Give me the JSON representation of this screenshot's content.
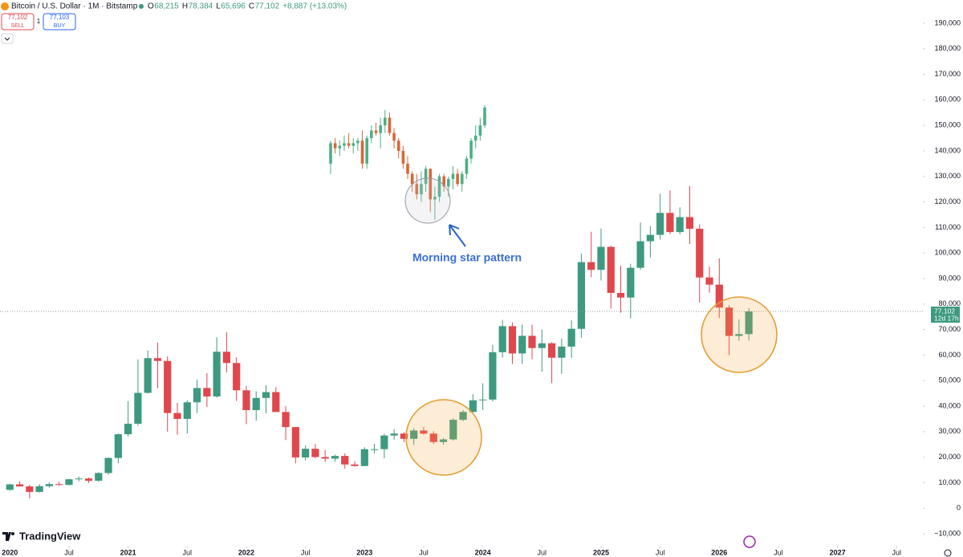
{
  "chart_data": {
    "type": "candlestick",
    "header": {
      "symbol": "Bitcoin / U.S. Dollar · 1M · Bitstamp",
      "ohlc": [
        {
          "label": "O",
          "value": "68,215"
        },
        {
          "label": "H",
          "value": "78,384"
        },
        {
          "label": "L",
          "value": "65,696"
        },
        {
          "label": "C",
          "value": "77,102"
        }
      ],
      "change": "+8,887 (+13.03%)",
      "sell_price": "77,102",
      "sell": "SELL",
      "quantity": "1",
      "buy_price": "77,103",
      "buy": "BUY"
    },
    "logo": "TradingView",
    "up_color": "#3d9a80",
    "down_color": "#e0474c",
    "candles": [
      [
        7200,
        9600,
        6900,
        9350
      ],
      [
        9350,
        10500,
        8450,
        8550
      ],
      [
        8550,
        9200,
        3850,
        6400
      ],
      [
        6400,
        9450,
        6150,
        8650
      ],
      [
        8650,
        10070,
        8100,
        9450
      ],
      [
        9450,
        10400,
        8900,
        9150
      ],
      [
        9150,
        11450,
        8950,
        11350
      ],
      [
        11350,
        12470,
        10500,
        11650
      ],
      [
        11650,
        12050,
        9900,
        10780
      ],
      [
        10780,
        14100,
        10400,
        13800
      ],
      [
        13800,
        19900,
        13200,
        19700
      ],
      [
        19700,
        29300,
        17600,
        28990
      ],
      [
        28990,
        41950,
        28130,
        33110
      ],
      [
        33110,
        58350,
        32300,
        45200
      ],
      [
        45200,
        61800,
        44950,
        58800
      ],
      [
        58800,
        64900,
        47000,
        57700
      ],
      [
        57700,
        59500,
        30000,
        37300
      ],
      [
        37300,
        41300,
        28800,
        35000
      ],
      [
        35000,
        42300,
        29300,
        41500
      ],
      [
        41500,
        50500,
        37300,
        47100
      ],
      [
        47100,
        52900,
        39600,
        43800
      ],
      [
        43800,
        67000,
        43300,
        61300
      ],
      [
        61300,
        69000,
        53250,
        56900
      ],
      [
        56900,
        59100,
        42000,
        46200
      ],
      [
        46200,
        47950,
        32950,
        38450
      ],
      [
        38450,
        45800,
        34300,
        43200
      ],
      [
        43200,
        48200,
        37200,
        45500
      ],
      [
        45500,
        47450,
        37700,
        37700
      ],
      [
        37700,
        40000,
        26700,
        31800
      ],
      [
        31800,
        31900,
        17600,
        19900
      ],
      [
        19900,
        24650,
        18800,
        23300
      ],
      [
        23300,
        25200,
        19600,
        20050
      ],
      [
        20050,
        22800,
        18150,
        19430
      ],
      [
        19430,
        21000,
        18200,
        20490
      ],
      [
        20490,
        21450,
        15500,
        17160
      ],
      [
        17160,
        18400,
        16300,
        16540
      ],
      [
        16540,
        23950,
        16500,
        23130
      ],
      [
        23130,
        25250,
        21400,
        23150
      ],
      [
        23150,
        29200,
        19600,
        28480
      ],
      [
        28480,
        31000,
        26900,
        29250
      ],
      [
        29250,
        29800,
        25850,
        27200
      ],
      [
        27200,
        31400,
        24800,
        30450
      ],
      [
        30450,
        31850,
        28900,
        29230
      ],
      [
        29230,
        30200,
        25200,
        25940
      ],
      [
        25940,
        27500,
        24900,
        26960
      ],
      [
        26960,
        35200,
        26550,
        34650
      ],
      [
        34650,
        38450,
        34100,
        37720
      ],
      [
        37720,
        44700,
        37600,
        42280
      ],
      [
        42280,
        48950,
        38500,
        42580
      ],
      [
        42580,
        64000,
        41900,
        61130
      ],
      [
        61130,
        73800,
        59000,
        71330
      ],
      [
        71330,
        72800,
        56500,
        60640
      ],
      [
        60640,
        71950,
        56550,
        67540
      ],
      [
        67540,
        71950,
        58400,
        62760
      ],
      [
        62760,
        70000,
        53500,
        64620
      ],
      [
        64620,
        65000,
        49000,
        58970
      ],
      [
        58970,
        66500,
        52600,
        63330
      ],
      [
        63330,
        73600,
        58900,
        70290
      ],
      [
        70290,
        99800,
        66800,
        96410
      ],
      [
        96410,
        108300,
        90500,
        93400
      ],
      [
        93400,
        109600,
        89200,
        102400
      ],
      [
        102400,
        102800,
        78200,
        84350
      ],
      [
        84350,
        95000,
        76600,
        82550
      ],
      [
        82550,
        95750,
        74400,
        94200
      ],
      [
        94200,
        111900,
        93400,
        104600
      ],
      [
        104600,
        110500,
        98200,
        107100
      ],
      [
        107100,
        123200,
        105300,
        115700
      ],
      [
        115700,
        124500,
        107400,
        108200
      ],
      [
        108200,
        117900,
        107300,
        114050
      ],
      [
        114050,
        126200,
        103500,
        109500
      ],
      [
        109500,
        111200,
        80600,
        90400
      ],
      [
        90400,
        94600,
        84400,
        87600
      ],
      [
        87600,
        97900,
        74500,
        78600
      ],
      [
        78600,
        79500,
        60000,
        67500
      ],
      [
        67500,
        74000,
        65600,
        68215
      ],
      [
        68215,
        78384,
        65696,
        77102
      ]
    ],
    "last_price": {
      "value": "77,102",
      "countdown": "12d 17h"
    },
    "xlim": [
      -1,
      92.5
    ],
    "xticks": [
      {
        "value": 0,
        "label": "2020"
      },
      {
        "value": 6,
        "label": "Jul"
      },
      {
        "value": 12,
        "label": "2021"
      },
      {
        "value": 18,
        "label": "Jul"
      },
      {
        "value": 24,
        "label": "2022"
      },
      {
        "value": 30,
        "label": "Jul"
      },
      {
        "value": 36,
        "label": "2023"
      },
      {
        "value": 42,
        "label": "Jul"
      },
      {
        "value": 48,
        "label": "2024"
      },
      {
        "value": 54,
        "label": "Jul"
      },
      {
        "value": 60,
        "label": "2025"
      },
      {
        "value": 66,
        "label": "Jul"
      },
      {
        "value": 72,
        "label": "2026"
      },
      {
        "value": 78,
        "label": "Jul"
      },
      {
        "value": 84,
        "label": "2027"
      },
      {
        "value": 90,
        "label": "Jul"
      }
    ],
    "ylim": [
      -19100,
      199100
    ],
    "yticks": [
      {
        "value": -10000,
        "label": "−10,000"
      },
      0,
      {
        "value": 10000,
        "label": "10,000"
      },
      {
        "value": 20000,
        "label": "20,000"
      },
      {
        "value": 30000,
        "label": "30,000"
      },
      {
        "value": 40000,
        "label": "40,000"
      },
      {
        "value": 50000,
        "label": "50,000"
      },
      {
        "value": 60000,
        "label": "60,000"
      },
      {
        "value": 70000,
        "label": "70,000"
      },
      {
        "value": 80000,
        "label": "80,000"
      },
      {
        "value": 90000,
        "label": "90,000"
      },
      {
        "value": 100000,
        "label": "100,000"
      },
      {
        "value": 110000,
        "label": "110,000"
      },
      {
        "value": 120000,
        "label": "120,000"
      },
      {
        "value": 130000,
        "label": "130,000"
      },
      {
        "value": 140000,
        "label": "140,000"
      },
      {
        "value": 150000,
        "label": "150,000"
      },
      {
        "value": 160000,
        "label": "160,000"
      },
      {
        "value": 170000,
        "label": "170,000"
      },
      {
        "value": 180000,
        "label": "180,000"
      },
      {
        "value": 190000,
        "label": "190,000"
      }
    ],
    "inset": {
      "annotation": "Morning star pattern",
      "up_color": "#4caf85",
      "down_color": "#d8663a",
      "candles": [
        [
          135000,
          144000,
          131000,
          143000
        ],
        [
          143000,
          145000,
          139000,
          141000
        ],
        [
          141000,
          144000,
          138000,
          142000
        ],
        [
          142000,
          146000,
          140000,
          143000
        ],
        [
          143000,
          147000,
          141000,
          142000
        ],
        [
          142000,
          145000,
          139000,
          143000
        ],
        [
          143000,
          145000,
          140000,
          144000
        ],
        [
          144000,
          148000,
          133000,
          135000
        ],
        [
          135000,
          146000,
          133000,
          145000
        ],
        [
          145000,
          150000,
          143000,
          148000
        ],
        [
          148000,
          151000,
          146000,
          147000
        ],
        [
          147000,
          153000,
          141000,
          150000
        ],
        [
          150000,
          156000,
          147000,
          153000
        ],
        [
          153000,
          155000,
          146000,
          147000
        ],
        [
          147000,
          149000,
          141000,
          144000
        ],
        [
          144000,
          145000,
          137000,
          140000
        ],
        [
          140000,
          142000,
          133000,
          135000
        ],
        [
          135000,
          138000,
          129000,
          131000
        ],
        [
          131000,
          132000,
          124000,
          127000
        ],
        [
          127000,
          131000,
          121000,
          123000
        ],
        [
          123000,
          132000,
          120000,
          127000
        ],
        [
          127000,
          134000,
          124000,
          133000
        ],
        [
          133000,
          133000,
          116000,
          121000
        ],
        [
          121000,
          126000,
          113000,
          122000
        ],
        [
          122000,
          131000,
          120000,
          130000
        ],
        [
          130000,
          131000,
          124000,
          126000
        ],
        [
          126000,
          130000,
          122000,
          129000
        ],
        [
          129000,
          134000,
          125000,
          131000
        ],
        [
          131000,
          133000,
          126000,
          127000
        ],
        [
          127000,
          132000,
          124000,
          131000
        ],
        [
          131000,
          138000,
          129000,
          137000
        ],
        [
          137000,
          145000,
          135000,
          144000
        ],
        [
          144000,
          150000,
          141000,
          146000
        ],
        [
          146000,
          153000,
          144000,
          150000
        ],
        [
          150000,
          158000,
          149000,
          157000
        ]
      ]
    }
  }
}
